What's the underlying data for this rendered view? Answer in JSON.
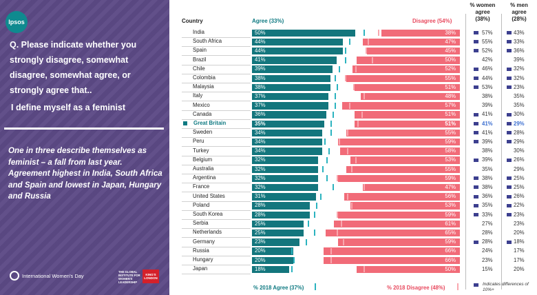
{
  "brand": {
    "logo_text": "Ipsos",
    "iwd_text": "International Women's Day",
    "gi_text": "THE GLOBAL INSTITUTE FOR WOMEN'S LEADERSHIP",
    "kcl_text": "KING'S LONDON"
  },
  "question": "Q. Please indicate whether you strongly disagree, somewhat disagree, somewhat agree, or strongly agree that..",
  "statement": "I define myself as a feminist",
  "summary": "One in three describe themselves as  feminist – a fall from last year.  Agreement highest in India, South Africa and Spain and lowest in Japan, Hungary and Russia",
  "headers": {
    "country": "Country",
    "agree": "Agree (33%)",
    "disagree": "Disagree  (54%)",
    "women": "% women agree (38%)",
    "men": "% men agree (28%)"
  },
  "footer": {
    "agree_2018": "% 2018 Agree (37%)",
    "disagree_2018": "% 2018 Disagree (48%)",
    "note": "Indicates differences of 10%+"
  },
  "colors": {
    "agree": "#13767d",
    "disagree": "#f16b78",
    "agree_2018": "#2bb3bf",
    "disagree_2018": "#f9a7ae",
    "panel": "#5c4a86",
    "diff_marker": "#3c3f8f"
  },
  "chart_data": {
    "type": "bar",
    "highlight": "Great Britain",
    "categories": [
      "India",
      "South Africa",
      "Spain",
      "Brazil",
      "Chile",
      "Colombia",
      "Malaysia",
      "Italy",
      "Mexico",
      "Canada",
      "Great Britain",
      "Sweden",
      "Peru",
      "Turkey",
      "Belgium",
      "Australia",
      "Argentina",
      "France",
      "United States",
      "Poland",
      "South Korea",
      "Serbia",
      "Netherlands",
      "Germany",
      "Russia",
      "Hungary",
      "Japan"
    ],
    "series": [
      {
        "name": "Agree (33%)",
        "values": [
          50,
          44,
          44,
          41,
          39,
          38,
          38,
          37,
          37,
          36,
          35,
          34,
          34,
          34,
          32,
          32,
          32,
          32,
          31,
          28,
          28,
          25,
          25,
          23,
          20,
          20,
          18
        ]
      },
      {
        "name": "Disagree  (54%)",
        "values": [
          38,
          47,
          45,
          50,
          52,
          55,
          51,
          48,
          57,
          51,
          51,
          55,
          59,
          58,
          53,
          55,
          59,
          47,
          56,
          53,
          59,
          61,
          65,
          59,
          66,
          66,
          50
        ]
      },
      {
        "name": "% women agree (38%)",
        "values": [
          57,
          55,
          52,
          42,
          46,
          44,
          53,
          38,
          39,
          41,
          41,
          41,
          39,
          38,
          39,
          35,
          38,
          38,
          36,
          35,
          33,
          27,
          28,
          28,
          24,
          23,
          15
        ]
      },
      {
        "name": "% men agree (28%)",
        "values": [
          43,
          33,
          36,
          39,
          32,
          32,
          23,
          35,
          35,
          30,
          29,
          28,
          29,
          30,
          26,
          29,
          25,
          25,
          26,
          22,
          23,
          23,
          20,
          18,
          17,
          17,
          20
        ]
      },
      {
        "name": "% 2018 Agree (37%)",
        "values": [
          54,
          47,
          45,
          45,
          42,
          40,
          41,
          40,
          40,
          39,
          38,
          38,
          35,
          37,
          36,
          34,
          36,
          39,
          33,
          31,
          30,
          27,
          30,
          26,
          19,
          20,
          19
        ]
      },
      {
        "name": "% 2018 Disagree (48%)",
        "values": [
          39,
          44,
          45,
          42,
          50,
          55,
          51,
          46,
          53,
          47,
          49,
          54,
          58,
          54,
          50,
          52,
          59,
          46,
          54,
          52,
          59,
          57,
          59,
          56,
          62,
          62,
          46
        ]
      }
    ],
    "diff_women": [
      true,
      true,
      true,
      false,
      true,
      true,
      true,
      false,
      false,
      true,
      true,
      true,
      true,
      false,
      true,
      false,
      true,
      true,
      true,
      true,
      true,
      false,
      false,
      true,
      false,
      false,
      false
    ],
    "diff_men": [
      true,
      true,
      true,
      false,
      true,
      true,
      true,
      false,
      false,
      true,
      true,
      true,
      true,
      false,
      true,
      false,
      true,
      true,
      true,
      true,
      true,
      false,
      false,
      true,
      false,
      false,
      false
    ]
  }
}
